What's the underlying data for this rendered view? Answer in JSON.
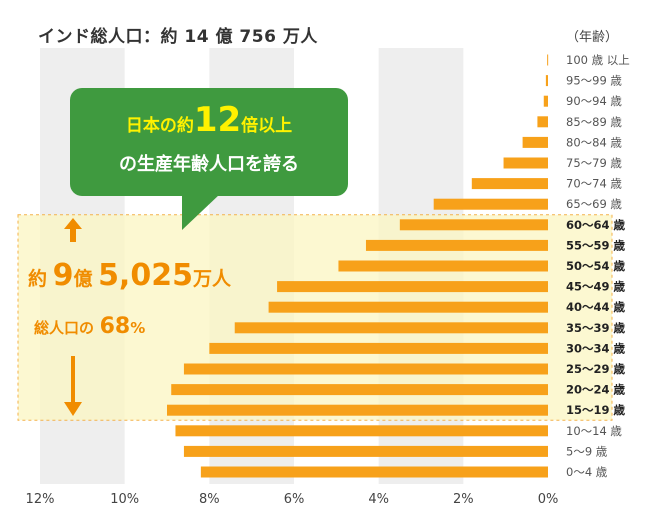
{
  "title": "インド総人口：約 14 億 756 万人",
  "age_header": "（年齢）",
  "callout": {
    "line1_pre": "日本の約",
    "line1_num": "12",
    "line1_post": "倍以上",
    "line2": "の生産年齢人口を誇る"
  },
  "highlight": {
    "total_prefix": "約",
    "total_num1": "9",
    "total_unit1": "億",
    "total_num2": "5,025",
    "total_unit2": "万人",
    "pct_prefix": "総人口の",
    "pct_num": "68",
    "pct_unit": "%"
  },
  "colors": {
    "bar": "#f7a11a",
    "band": "#fbf6c2",
    "band_border": "#f4b24a",
    "grid_band": "#eeeeee",
    "callout": "#3f9a3f",
    "callout_accent": "#fff200",
    "highlight_text": "#f08c00"
  },
  "chart_data": {
    "type": "bar",
    "orientation": "horizontal",
    "x_direction": "reversed",
    "xlim": [
      0,
      12
    ],
    "x_ticks": [
      "12%",
      "10%",
      "8%",
      "6%",
      "4%",
      "2%",
      "0%"
    ],
    "x_tick_values": [
      12,
      10,
      8,
      6,
      4,
      2,
      0
    ],
    "categories": [
      "100 歳 以上",
      "95〜99 歳",
      "90〜94 歳",
      "85〜89 歳",
      "80〜84 歳",
      "75〜79 歳",
      "70〜74 歳",
      "65〜69 歳",
      "60〜64 歳",
      "55〜59 歳",
      "50〜54 歳",
      "45〜49 歳",
      "40〜44 歳",
      "35〜39 歳",
      "30〜34 歳",
      "25〜29 歳",
      "20〜24 歳",
      "15〜19 歳",
      "10〜14 歳",
      "5〜9 歳",
      "0〜4 歳"
    ],
    "values": [
      0.02,
      0.05,
      0.1,
      0.25,
      0.6,
      1.05,
      1.8,
      2.7,
      3.5,
      4.3,
      4.95,
      6.4,
      6.6,
      7.4,
      8.0,
      8.6,
      8.9,
      9.0,
      8.8,
      8.6,
      8.2
    ],
    "bold_categories_range": [
      8,
      17
    ],
    "grid": "alternating vertical bands"
  }
}
